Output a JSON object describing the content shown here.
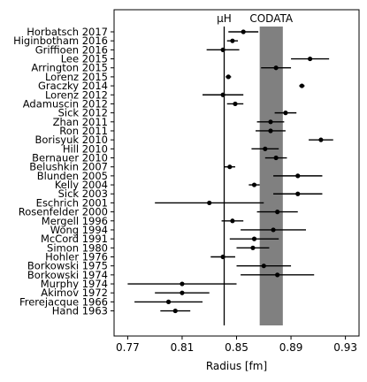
{
  "chart_data": {
    "type": "scatter",
    "xlabel": "Radius [fm]",
    "xlim": [
      0.76,
      0.94
    ],
    "x_ticks": [
      0.77,
      0.81,
      0.85,
      0.89,
      0.93
    ],
    "x_tick_labels": [
      "0.77",
      "0.81",
      "0.85",
      "0.89",
      "0.93"
    ],
    "reference_line": {
      "label": "μH",
      "x": 0.8409
    },
    "band": {
      "label": "CODATA",
      "x_min": 0.867,
      "x_max": 0.884,
      "color": "#808080"
    },
    "points": [
      {
        "label": "Horbatsch 2017",
        "x": 0.855,
        "err": 0.011
      },
      {
        "label": "Higinbotham 2016",
        "x": 0.847,
        "err": 0.004
      },
      {
        "label": "Griffioen 2016",
        "x": 0.84,
        "err": 0.012
      },
      {
        "label": "Lee 2015",
        "x": 0.904,
        "err": 0.014
      },
      {
        "label": "Arrington 2015",
        "x": 0.879,
        "err": 0.011
      },
      {
        "label": "Lorenz 2015",
        "x": 0.844,
        "err": 0.002
      },
      {
        "label": "Graczky 2014",
        "x": 0.898,
        "err": 0.002
      },
      {
        "label": "Lorenz 2012",
        "x": 0.84,
        "err": 0.015
      },
      {
        "label": "Adamuscin 2012",
        "x": 0.849,
        "err": 0.006
      },
      {
        "label": "Sick 2012",
        "x": 0.886,
        "err": 0.008
      },
      {
        "label": "Zhan 2011",
        "x": 0.875,
        "err": 0.01
      },
      {
        "label": "Ron 2011",
        "x": 0.875,
        "err": 0.011
      },
      {
        "label": "Borisyuk 2010",
        "x": 0.912,
        "err": 0.009
      },
      {
        "label": "Hill 2010",
        "x": 0.871,
        "err": 0.01
      },
      {
        "label": "Bernauer 2010",
        "x": 0.879,
        "err": 0.008
      },
      {
        "label": "Belushkin 2007",
        "x": 0.845,
        "err": 0.004
      },
      {
        "label": "Blunden 2005",
        "x": 0.895,
        "err": 0.018
      },
      {
        "label": "Kelly 2004",
        "x": 0.863,
        "err": 0.004
      },
      {
        "label": "Sick 2003",
        "x": 0.895,
        "err": 0.018
      },
      {
        "label": "Eschrich 2001",
        "x": 0.83,
        "err": 0.04
      },
      {
        "label": "Rosenfelder 2000",
        "x": 0.88,
        "err": 0.015
      },
      {
        "label": "Mergell 1996",
        "x": 0.847,
        "err": 0.008
      },
      {
        "label": "Wong 1994",
        "x": 0.877,
        "err": 0.024
      },
      {
        "label": "McCord 1991",
        "x": 0.863,
        "err": 0.018
      },
      {
        "label": "Simon 1980",
        "x": 0.862,
        "err": 0.012
      },
      {
        "label": "Hohler 1976",
        "x": 0.84,
        "err": 0.009
      },
      {
        "label": "Borkowski 1975",
        "x": 0.87,
        "err": 0.02
      },
      {
        "label": "Borkowski 1974",
        "x": 0.88,
        "err": 0.027
      },
      {
        "label": "Murphy 1974",
        "x": 0.81,
        "err": 0.04
      },
      {
        "label": "Akimov 1972",
        "x": 0.81,
        "err": 0.02
      },
      {
        "label": "Frerejacque 1966",
        "x": 0.8,
        "err": 0.025
      },
      {
        "label": "Hand 1963",
        "x": 0.805,
        "err": 0.011
      }
    ]
  }
}
